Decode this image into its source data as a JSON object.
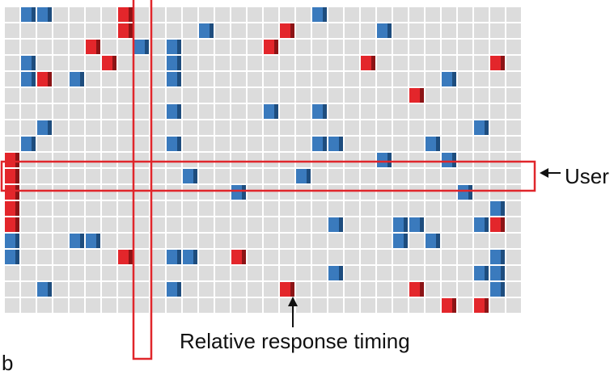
{
  "labels": {
    "row_annotation": "User",
    "column_annotation": "Relative response timing",
    "cut_off_text": "b"
  },
  "colors": {
    "empty_cell": "#dcdcdc",
    "blue_cell": "#3a7abd",
    "blue_shade": "#1e4d7e",
    "red_cell": "#e3262b",
    "red_shade": "#8c1416",
    "highlight": "#e0262b",
    "arrow": "#111111"
  },
  "grid": {
    "rows": 19,
    "columns": 32,
    "highlighted_row": 10,
    "highlighted_column": 8,
    "filled_cells": [
      {
        "row": 0,
        "col": 1,
        "color": "blue"
      },
      {
        "row": 0,
        "col": 2,
        "color": "blue"
      },
      {
        "row": 0,
        "col": 7,
        "color": "red"
      },
      {
        "row": 0,
        "col": 19,
        "color": "blue"
      },
      {
        "row": 1,
        "col": 7,
        "color": "red"
      },
      {
        "row": 1,
        "col": 12,
        "color": "blue"
      },
      {
        "row": 1,
        "col": 17,
        "color": "red"
      },
      {
        "row": 1,
        "col": 23,
        "color": "blue"
      },
      {
        "row": 2,
        "col": 5,
        "color": "red"
      },
      {
        "row": 2,
        "col": 8,
        "color": "blue"
      },
      {
        "row": 2,
        "col": 10,
        "color": "blue"
      },
      {
        "row": 2,
        "col": 16,
        "color": "red"
      },
      {
        "row": 3,
        "col": 1,
        "color": "blue"
      },
      {
        "row": 3,
        "col": 6,
        "color": "red"
      },
      {
        "row": 3,
        "col": 10,
        "color": "blue"
      },
      {
        "row": 3,
        "col": 22,
        "color": "red"
      },
      {
        "row": 3,
        "col": 30,
        "color": "red"
      },
      {
        "row": 4,
        "col": 1,
        "color": "blue"
      },
      {
        "row": 4,
        "col": 2,
        "color": "red"
      },
      {
        "row": 4,
        "col": 4,
        "color": "blue"
      },
      {
        "row": 4,
        "col": 10,
        "color": "blue"
      },
      {
        "row": 4,
        "col": 27,
        "color": "blue"
      },
      {
        "row": 5,
        "col": 25,
        "color": "red"
      },
      {
        "row": 6,
        "col": 10,
        "color": "blue"
      },
      {
        "row": 6,
        "col": 16,
        "color": "blue"
      },
      {
        "row": 6,
        "col": 19,
        "color": "blue"
      },
      {
        "row": 7,
        "col": 2,
        "color": "blue"
      },
      {
        "row": 7,
        "col": 29,
        "color": "blue"
      },
      {
        "row": 8,
        "col": 1,
        "color": "blue"
      },
      {
        "row": 8,
        "col": 10,
        "color": "blue"
      },
      {
        "row": 8,
        "col": 19,
        "color": "blue"
      },
      {
        "row": 8,
        "col": 20,
        "color": "blue"
      },
      {
        "row": 8,
        "col": 26,
        "color": "blue"
      },
      {
        "row": 9,
        "col": 0,
        "color": "red"
      },
      {
        "row": 9,
        "col": 23,
        "color": "blue"
      },
      {
        "row": 9,
        "col": 27,
        "color": "blue"
      },
      {
        "row": 10,
        "col": 0,
        "color": "red"
      },
      {
        "row": 10,
        "col": 11,
        "color": "blue"
      },
      {
        "row": 10,
        "col": 18,
        "color": "blue"
      },
      {
        "row": 11,
        "col": 0,
        "color": "red"
      },
      {
        "row": 11,
        "col": 14,
        "color": "blue"
      },
      {
        "row": 11,
        "col": 28,
        "color": "blue"
      },
      {
        "row": 12,
        "col": 0,
        "color": "red"
      },
      {
        "row": 12,
        "col": 30,
        "color": "blue"
      },
      {
        "row": 13,
        "col": 0,
        "color": "red"
      },
      {
        "row": 13,
        "col": 20,
        "color": "blue"
      },
      {
        "row": 13,
        "col": 24,
        "color": "blue"
      },
      {
        "row": 13,
        "col": 25,
        "color": "blue"
      },
      {
        "row": 13,
        "col": 29,
        "color": "blue"
      },
      {
        "row": 13,
        "col": 30,
        "color": "red"
      },
      {
        "row": 14,
        "col": 0,
        "color": "blue"
      },
      {
        "row": 14,
        "col": 4,
        "color": "blue"
      },
      {
        "row": 14,
        "col": 5,
        "color": "blue"
      },
      {
        "row": 14,
        "col": 24,
        "color": "blue"
      },
      {
        "row": 14,
        "col": 26,
        "color": "blue"
      },
      {
        "row": 15,
        "col": 0,
        "color": "blue"
      },
      {
        "row": 15,
        "col": 7,
        "color": "red"
      },
      {
        "row": 15,
        "col": 10,
        "color": "blue"
      },
      {
        "row": 15,
        "col": 11,
        "color": "blue"
      },
      {
        "row": 15,
        "col": 14,
        "color": "red"
      },
      {
        "row": 15,
        "col": 30,
        "color": "blue"
      },
      {
        "row": 16,
        "col": 20,
        "color": "blue"
      },
      {
        "row": 16,
        "col": 29,
        "color": "blue"
      },
      {
        "row": 16,
        "col": 30,
        "color": "blue"
      },
      {
        "row": 17,
        "col": 2,
        "color": "blue"
      },
      {
        "row": 17,
        "col": 10,
        "color": "blue"
      },
      {
        "row": 17,
        "col": 17,
        "color": "red"
      },
      {
        "row": 17,
        "col": 25,
        "color": "red"
      },
      {
        "row": 17,
        "col": 30,
        "color": "blue"
      },
      {
        "row": 18,
        "col": 27,
        "color": "red"
      },
      {
        "row": 18,
        "col": 29,
        "color": "red"
      }
    ]
  }
}
